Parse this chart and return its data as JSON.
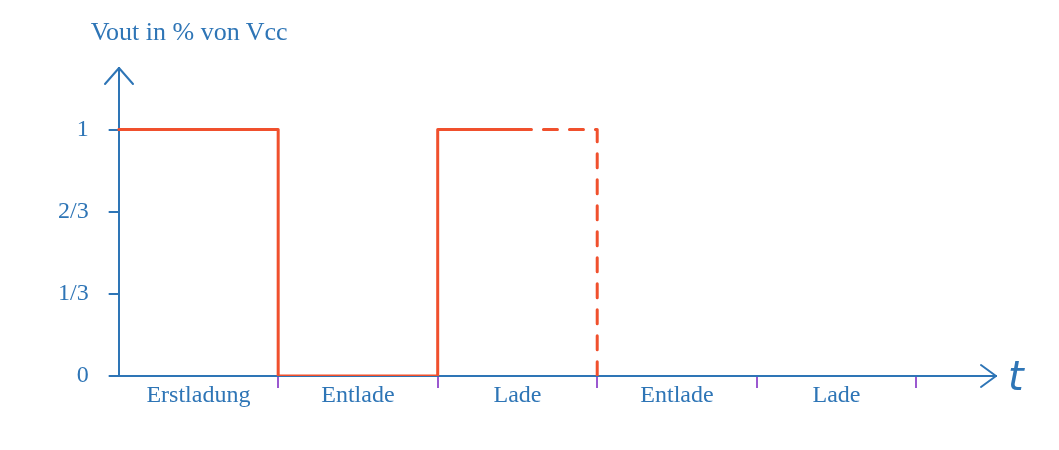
{
  "chart_data": {
    "type": "step",
    "ylabel": "Vout in % von Vcc",
    "xlabel": "t",
    "categories": [
      null,
      "Erstladung",
      null,
      "Entlade",
      null,
      "Lade",
      null,
      "Entlade",
      null,
      "Lade",
      null,
      null
    ],
    "ylim": [
      0,
      1.25
    ],
    "yticks": [
      0,
      {
        "value": 0.333,
        "label": "1/3"
      },
      {
        "value": 0.667,
        "label": "2/3"
      },
      1
    ],
    "series": [
      {
        "color": "#f0502d",
        "line_style": "solid",
        "values": [
          1,
          1,
          0,
          0,
          1,
          1,
          null,
          null,
          null,
          null,
          null,
          null
        ]
      },
      {
        "color": "#f0502d",
        "line_style": "dashed",
        "values": [
          null,
          null,
          null,
          null,
          null,
          1,
          0,
          null,
          null,
          null,
          null,
          null
        ]
      }
    ],
    "marker": "none",
    "grid": false,
    "legend": false
  }
}
